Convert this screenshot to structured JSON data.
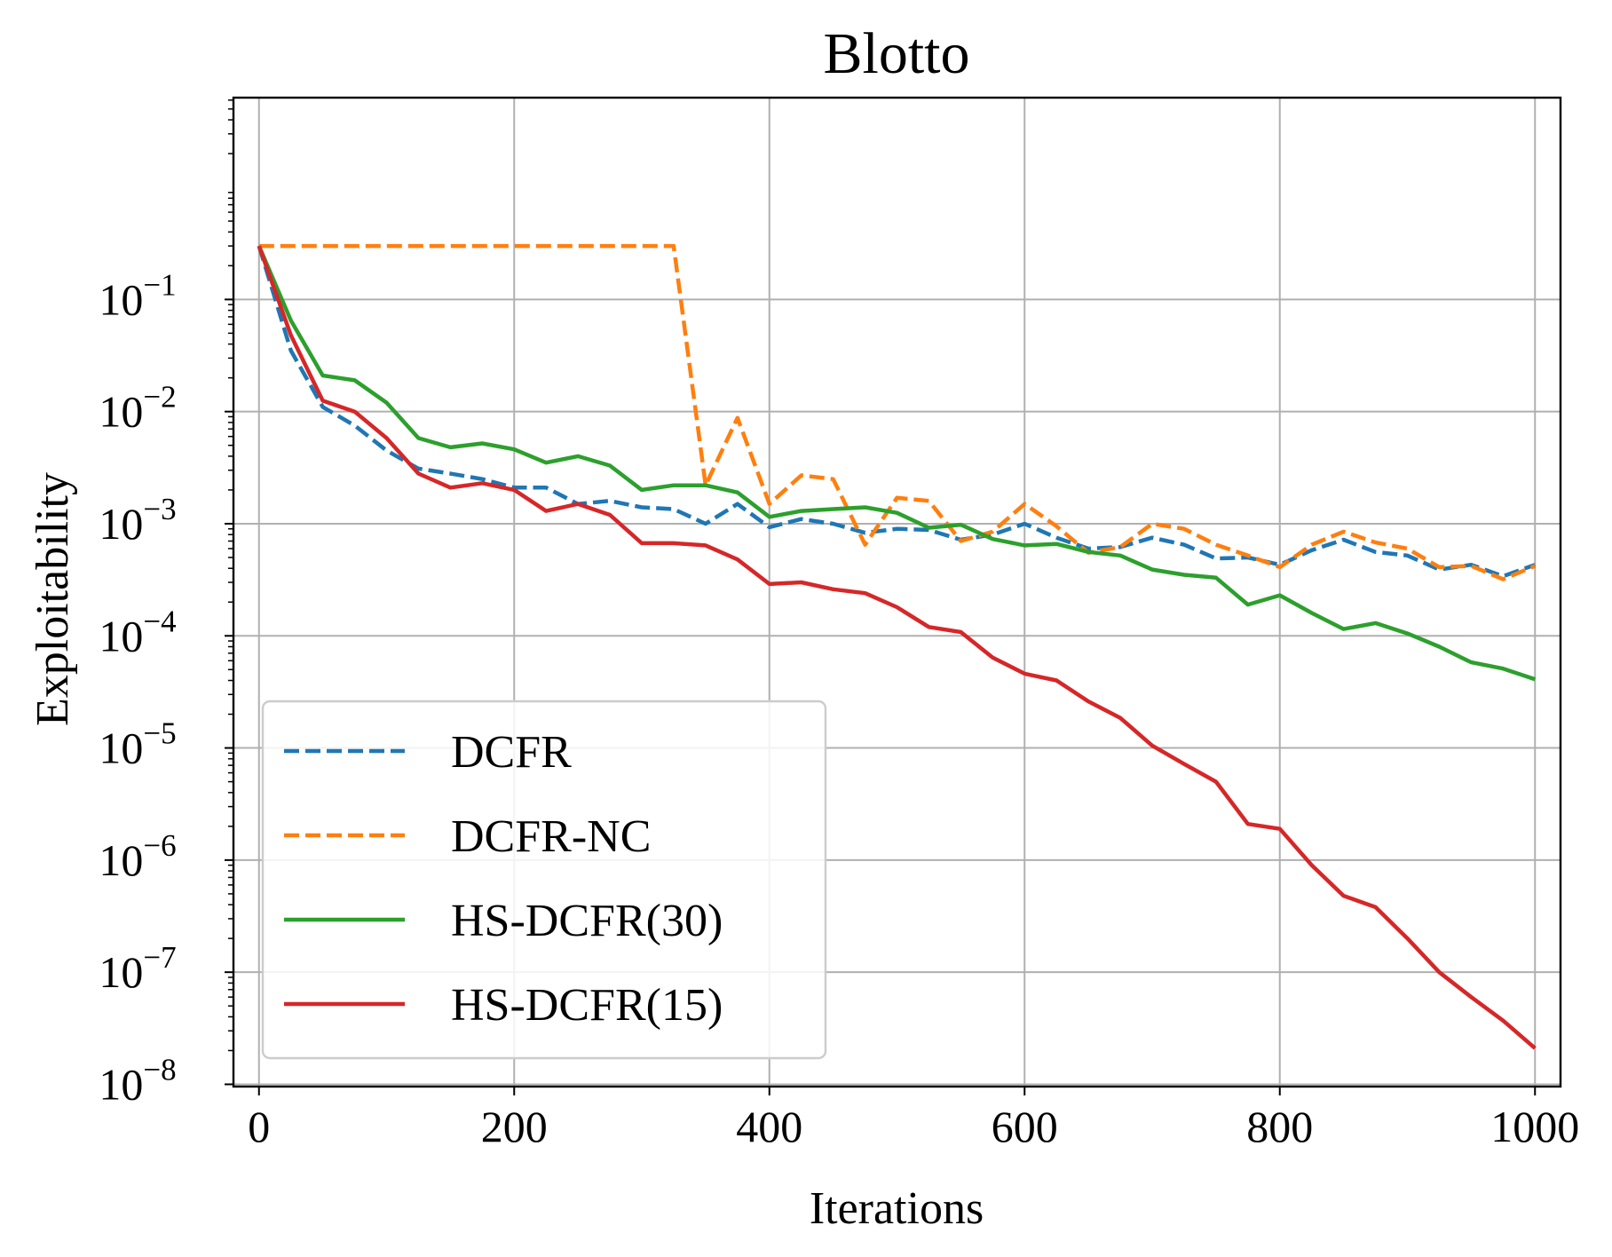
{
  "chart_data": {
    "type": "line",
    "title": "Blotto",
    "xlabel": "Iterations",
    "ylabel": "Exploitability",
    "yscale": "log",
    "xlim": [
      -20,
      1020
    ],
    "ylim_exp": [
      -8.02,
      0.8
    ],
    "grid": true,
    "legend_position": "bottom-left",
    "x_ticks": [
      {
        "value": 0,
        "label": "0"
      },
      {
        "value": 200,
        "label": "200"
      },
      {
        "value": 400,
        "label": "400"
      },
      {
        "value": 600,
        "label": "600"
      },
      {
        "value": 800,
        "label": "800"
      },
      {
        "value": 1000,
        "label": "1000"
      }
    ],
    "y_ticks": [
      {
        "exp": -1,
        "base": "10",
        "sup": "−1"
      },
      {
        "exp": -2,
        "base": "10",
        "sup": "−2"
      },
      {
        "exp": -3,
        "base": "10",
        "sup": "−3"
      },
      {
        "exp": -4,
        "base": "10",
        "sup": "−4"
      },
      {
        "exp": -5,
        "base": "10",
        "sup": "−5"
      },
      {
        "exp": -6,
        "base": "10",
        "sup": "−6"
      },
      {
        "exp": -7,
        "base": "10",
        "sup": "−7"
      },
      {
        "exp": -8,
        "base": "10",
        "sup": "−8"
      }
    ],
    "x": [
      0,
      25,
      50,
      75,
      100,
      125,
      150,
      175,
      200,
      225,
      250,
      275,
      300,
      325,
      350,
      375,
      400,
      425,
      450,
      475,
      500,
      525,
      550,
      575,
      600,
      625,
      650,
      675,
      700,
      725,
      750,
      775,
      800,
      825,
      850,
      875,
      900,
      925,
      950,
      975,
      1000
    ],
    "series": [
      {
        "name": "DCFR",
        "color": "#1f77b4",
        "dash": "dashed",
        "values": [
          0.3,
          0.035,
          0.011,
          0.0075,
          0.0045,
          0.0031,
          0.0028,
          0.0025,
          0.0021,
          0.0021,
          0.0015,
          0.0016,
          0.0014,
          0.00135,
          0.001,
          0.0015,
          0.00093,
          0.0011,
          0.001,
          0.00083,
          0.0009,
          0.00088,
          0.00072,
          0.0008,
          0.001,
          0.00075,
          0.0006,
          0.00062,
          0.00075,
          0.00065,
          0.00049,
          0.0005,
          0.00043,
          0.00058,
          0.00072,
          0.00056,
          0.00052,
          0.00039,
          0.00043,
          0.00034,
          0.00043
        ]
      },
      {
        "name": "DCFR-NC",
        "color": "#ff7f0e",
        "dash": "dashed",
        "values": [
          0.3,
          0.3,
          0.3,
          0.3,
          0.3,
          0.3,
          0.3,
          0.3,
          0.3,
          0.3,
          0.3,
          0.3,
          0.3,
          0.3,
          0.0022,
          0.0088,
          0.0015,
          0.0027,
          0.0025,
          0.00065,
          0.0017,
          0.0016,
          0.0007,
          0.00085,
          0.0015,
          0.00095,
          0.00055,
          0.00062,
          0.001,
          0.0009,
          0.00065,
          0.00052,
          0.00041,
          0.00065,
          0.00085,
          0.00068,
          0.0006,
          0.00041,
          0.00042,
          0.00032,
          0.00042
        ]
      },
      {
        "name": "HS-DCFR(30)",
        "color": "#2ca02c",
        "dash": "solid",
        "values": [
          0.3,
          0.065,
          0.021,
          0.019,
          0.012,
          0.0058,
          0.0048,
          0.0052,
          0.0046,
          0.0035,
          0.004,
          0.0033,
          0.002,
          0.0022,
          0.0022,
          0.0019,
          0.00115,
          0.0013,
          0.00135,
          0.0014,
          0.00125,
          0.00092,
          0.00098,
          0.00073,
          0.00064,
          0.00066,
          0.00056,
          0.00052,
          0.00039,
          0.00035,
          0.00033,
          0.00019,
          0.00023,
          0.00016,
          0.000115,
          0.00013,
          0.000105,
          8e-05,
          5.8e-05,
          5.1e-05,
          4.1e-05
        ]
      },
      {
        "name": "HS-DCFR(15)",
        "color": "#d62728",
        "dash": "solid",
        "values": [
          0.3,
          0.048,
          0.0125,
          0.01,
          0.0058,
          0.0028,
          0.0021,
          0.0023,
          0.002,
          0.0013,
          0.0015,
          0.0012,
          0.00067,
          0.00067,
          0.00064,
          0.00048,
          0.00029,
          0.0003,
          0.00026,
          0.00024,
          0.00018,
          0.00012,
          0.000108,
          6.4e-05,
          4.6e-05,
          4e-05,
          2.6e-05,
          1.85e-05,
          1.05e-05,
          7.2e-06,
          5e-06,
          2.1e-06,
          1.9e-06,
          9e-07,
          4.8e-07,
          3.8e-07,
          2e-07,
          1e-07,
          6e-08,
          3.7e-08,
          2.1e-08
        ]
      }
    ]
  }
}
